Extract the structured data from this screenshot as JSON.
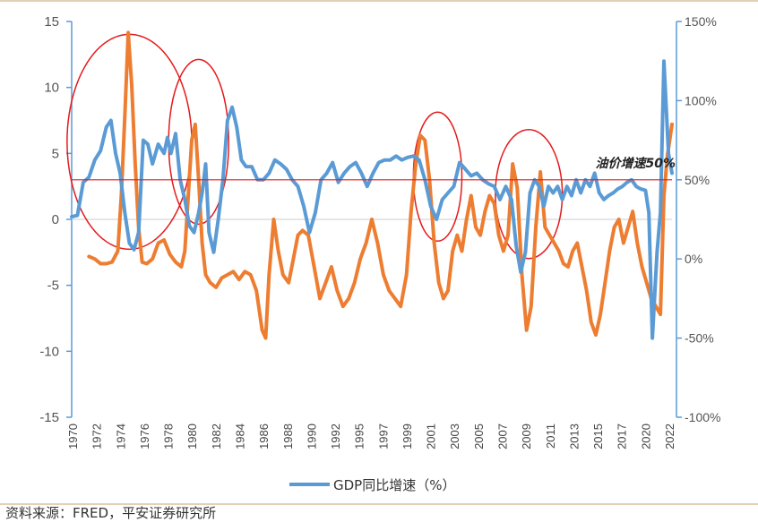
{
  "chart_data": {
    "type": "line",
    "title": "",
    "xlabel": "",
    "ylabel": "",
    "ylim": [
      -15,
      15
    ],
    "y2lim": [
      -100,
      150
    ],
    "y_ticks": [
      "15",
      "10",
      "5",
      "0",
      "-5",
      "-10",
      "-15"
    ],
    "y2_ticks": [
      "150%",
      "100%",
      "50%",
      "0%",
      "-50%",
      "-100%"
    ],
    "x_ticks": [
      "1970",
      "1972",
      "1974",
      "1976",
      "1978",
      "1980",
      "1982",
      "1984",
      "1986",
      "1988",
      "1990",
      "1992",
      "1995",
      "1997",
      "1999",
      "2001",
      "2003",
      "2005",
      "2007",
      "2009",
      "2011",
      "2013",
      "2015",
      "2017",
      "2020",
      "2022"
    ],
    "series": [
      {
        "name": "GDP同比增速（%）",
        "axis": "left",
        "color": "#5B9BD5",
        "points": [
          [
            1970,
            0.2
          ],
          [
            1970.5,
            0.3
          ],
          [
            1971,
            2.8
          ],
          [
            1971.5,
            3.2
          ],
          [
            1972,
            4.5
          ],
          [
            1972.5,
            5.2
          ],
          [
            1973,
            7.0
          ],
          [
            1973.4,
            7.5
          ],
          [
            1973.8,
            5.0
          ],
          [
            1974.2,
            3.5
          ],
          [
            1974.6,
            0.5
          ],
          [
            1975,
            -1.8
          ],
          [
            1975.4,
            -2.3
          ],
          [
            1975.8,
            -1.0
          ],
          [
            1976.2,
            6.0
          ],
          [
            1976.6,
            5.7
          ],
          [
            1977,
            4.2
          ],
          [
            1977.5,
            5.7
          ],
          [
            1978,
            5.0
          ],
          [
            1978.3,
            6.2
          ],
          [
            1978.6,
            5.0
          ],
          [
            1979,
            6.5
          ],
          [
            1979.4,
            3.0
          ],
          [
            1979.8,
            1.5
          ],
          [
            1980.2,
            -0.5
          ],
          [
            1980.6,
            -1.0
          ],
          [
            1981,
            0.5
          ],
          [
            1981.3,
            2.0
          ],
          [
            1981.6,
            4.2
          ],
          [
            1981.9,
            -1.0
          ],
          [
            1982.3,
            -2.5
          ],
          [
            1982.7,
            0.0
          ],
          [
            1983.1,
            3.0
          ],
          [
            1983.5,
            7.5
          ],
          [
            1983.9,
            8.5
          ],
          [
            1984.3,
            7.0
          ],
          [
            1984.7,
            4.5
          ],
          [
            1985.1,
            4.0
          ],
          [
            1985.6,
            4.0
          ],
          [
            1986.1,
            3.0
          ],
          [
            1986.6,
            3.0
          ],
          [
            1987.1,
            3.5
          ],
          [
            1987.6,
            4.5
          ],
          [
            1988.1,
            4.2
          ],
          [
            1988.6,
            3.8
          ],
          [
            1989.1,
            3.0
          ],
          [
            1989.6,
            2.5
          ],
          [
            1990.1,
            1.0
          ],
          [
            1990.6,
            -1.0
          ],
          [
            1991.1,
            0.5
          ],
          [
            1991.6,
            3.0
          ],
          [
            1992.1,
            3.5
          ],
          [
            1992.6,
            4.3
          ],
          [
            1993.1,
            2.8
          ],
          [
            1993.6,
            3.5
          ],
          [
            1994.1,
            4.0
          ],
          [
            1994.6,
            4.3
          ],
          [
            1995.1,
            3.5
          ],
          [
            1995.6,
            2.5
          ],
          [
            1996.1,
            3.5
          ],
          [
            1996.6,
            4.3
          ],
          [
            1997.1,
            4.5
          ],
          [
            1997.6,
            4.5
          ],
          [
            1998.1,
            4.8
          ],
          [
            1998.6,
            4.5
          ],
          [
            1999.1,
            4.7
          ],
          [
            1999.6,
            4.8
          ],
          [
            2000.1,
            4.5
          ],
          [
            2000.6,
            3.0
          ],
          [
            2001.1,
            1.0
          ],
          [
            2001.6,
            0.0
          ],
          [
            2002.1,
            1.5
          ],
          [
            2002.6,
            2.0
          ],
          [
            2003.1,
            2.5
          ],
          [
            2003.6,
            4.3
          ],
          [
            2004.1,
            3.8
          ],
          [
            2004.6,
            3.3
          ],
          [
            2005.1,
            3.5
          ],
          [
            2005.6,
            3.0
          ],
          [
            2006.1,
            2.7
          ],
          [
            2006.6,
            2.5
          ],
          [
            2007.1,
            1.5
          ],
          [
            2007.6,
            2.5
          ],
          [
            2008.1,
            1.5
          ],
          [
            2008.5,
            -2.0
          ],
          [
            2008.9,
            -4.0
          ],
          [
            2009.3,
            -2.5
          ],
          [
            2009.7,
            2.0
          ],
          [
            2010.1,
            3.0
          ],
          [
            2010.5,
            2.5
          ],
          [
            2010.9,
            1.0
          ],
          [
            2011.3,
            2.5
          ],
          [
            2011.7,
            2.0
          ],
          [
            2012.1,
            2.5
          ],
          [
            2012.5,
            1.5
          ],
          [
            2012.9,
            2.5
          ],
          [
            2013.3,
            1.8
          ],
          [
            2013.7,
            3.0
          ],
          [
            2014.1,
            2.0
          ],
          [
            2014.5,
            3.0
          ],
          [
            2014.9,
            2.5
          ],
          [
            2015.3,
            3.5
          ],
          [
            2015.7,
            2.0
          ],
          [
            2016.1,
            1.5
          ],
          [
            2016.5,
            1.8
          ],
          [
            2016.9,
            2.0
          ],
          [
            2017.3,
            2.3
          ],
          [
            2017.7,
            2.5
          ],
          [
            2018.1,
            2.8
          ],
          [
            2018.5,
            3.0
          ],
          [
            2018.9,
            2.5
          ],
          [
            2019.3,
            2.3
          ],
          [
            2019.7,
            2.2
          ],
          [
            2020.0,
            0.5
          ],
          [
            2020.3,
            -9.0
          ],
          [
            2020.7,
            -2.5
          ],
          [
            2021.0,
            0.5
          ],
          [
            2021.3,
            12.0
          ],
          [
            2021.7,
            5.0
          ],
          [
            2022.0,
            3.5
          ]
        ]
      },
      {
        "name": "",
        "axis": "right",
        "color": "#ED7D31",
        "points": [
          [
            1971.5,
            1.5
          ],
          [
            1972,
            0
          ],
          [
            1972.5,
            -3
          ],
          [
            1973,
            -3
          ],
          [
            1973.5,
            -2
          ],
          [
            1974,
            5
          ],
          [
            1974.3,
            40
          ],
          [
            1974.6,
            90
          ],
          [
            1974.9,
            143
          ],
          [
            1975.2,
            110
          ],
          [
            1975.5,
            60
          ],
          [
            1975.8,
            20
          ],
          [
            1976.1,
            -2
          ],
          [
            1976.5,
            -3
          ],
          [
            1977,
            0
          ],
          [
            1977.5,
            10
          ],
          [
            1978,
            12
          ],
          [
            1978.5,
            3
          ],
          [
            1979,
            -2
          ],
          [
            1979.5,
            -5
          ],
          [
            1979.8,
            5
          ],
          [
            1980.1,
            40
          ],
          [
            1980.4,
            75
          ],
          [
            1980.7,
            85
          ],
          [
            1981,
            50
          ],
          [
            1981.3,
            10
          ],
          [
            1981.6,
            -10
          ],
          [
            1982,
            -15
          ],
          [
            1982.5,
            -18
          ],
          [
            1983,
            -12
          ],
          [
            1983.5,
            -10
          ],
          [
            1984,
            -8
          ],
          [
            1984.5,
            -13
          ],
          [
            1985,
            -8
          ],
          [
            1985.5,
            -10
          ],
          [
            1986,
            -20
          ],
          [
            1986.5,
            -45
          ],
          [
            1986.8,
            -50
          ],
          [
            1987.1,
            -10
          ],
          [
            1987.5,
            25
          ],
          [
            1987.9,
            5
          ],
          [
            1988.3,
            -10
          ],
          [
            1988.8,
            -15
          ],
          [
            1989.2,
            0
          ],
          [
            1989.6,
            15
          ],
          [
            1990,
            18
          ],
          [
            1990.5,
            15
          ],
          [
            1991,
            -5
          ],
          [
            1991.5,
            -25
          ],
          [
            1992,
            -15
          ],
          [
            1992.5,
            -5
          ],
          [
            1993,
            -20
          ],
          [
            1993.5,
            -30
          ],
          [
            1994,
            -25
          ],
          [
            1994.5,
            -15
          ],
          [
            1995,
            0
          ],
          [
            1995.5,
            10
          ],
          [
            1996,
            25
          ],
          [
            1996.5,
            10
          ],
          [
            1997,
            -10
          ],
          [
            1997.5,
            -20
          ],
          [
            1998,
            -25
          ],
          [
            1998.5,
            -30
          ],
          [
            1999,
            -10
          ],
          [
            1999.4,
            30
          ],
          [
            1999.8,
            60
          ],
          [
            2000.2,
            78
          ],
          [
            2000.6,
            75
          ],
          [
            2001,
            50
          ],
          [
            2001.4,
            10
          ],
          [
            2001.8,
            -15
          ],
          [
            2002.2,
            -25
          ],
          [
            2002.6,
            -20
          ],
          [
            2003,
            5
          ],
          [
            2003.4,
            15
          ],
          [
            2003.8,
            5
          ],
          [
            2004.2,
            25
          ],
          [
            2004.6,
            40
          ],
          [
            2005,
            20
          ],
          [
            2005.4,
            15
          ],
          [
            2005.8,
            30
          ],
          [
            2006.2,
            40
          ],
          [
            2006.6,
            35
          ],
          [
            2007,
            15
          ],
          [
            2007.4,
            5
          ],
          [
            2007.8,
            15
          ],
          [
            2008.2,
            60
          ],
          [
            2008.6,
            45
          ],
          [
            2009,
            -10
          ],
          [
            2009.4,
            -45
          ],
          [
            2009.8,
            -30
          ],
          [
            2010.2,
            20
          ],
          [
            2010.6,
            55
          ],
          [
            2011,
            20
          ],
          [
            2011.4,
            15
          ],
          [
            2011.8,
            10
          ],
          [
            2012.2,
            5
          ],
          [
            2012.6,
            -3
          ],
          [
            2013,
            -5
          ],
          [
            2013.4,
            5
          ],
          [
            2013.8,
            10
          ],
          [
            2014.2,
            -5
          ],
          [
            2014.6,
            -20
          ],
          [
            2015,
            -40
          ],
          [
            2015.4,
            -48
          ],
          [
            2015.8,
            -35
          ],
          [
            2016.2,
            -15
          ],
          [
            2016.6,
            5
          ],
          [
            2017,
            20
          ],
          [
            2017.4,
            25
          ],
          [
            2017.8,
            10
          ],
          [
            2018.2,
            20
          ],
          [
            2018.6,
            30
          ],
          [
            2019,
            10
          ],
          [
            2019.4,
            -5
          ],
          [
            2019.8,
            -15
          ],
          [
            2020.2,
            -25
          ],
          [
            2020.6,
            -30
          ],
          [
            2021,
            -35
          ],
          [
            2021.3,
            40
          ],
          [
            2021.6,
            65
          ],
          [
            2022,
            85
          ]
        ]
      }
    ],
    "reference_line": {
      "axis": "right",
      "value": 50,
      "color": "#E41A1C",
      "label": "油价增速50%"
    },
    "ellipses": [
      [
        1975,
        74,
        5.4
      ],
      [
        1981,
        74,
        2.6
      ],
      [
        2001.7,
        52,
        2.1
      ],
      [
        2009.6,
        41,
        2.9
      ]
    ],
    "legend": {
      "position": "bottom",
      "label": "GDP同比增速（%）"
    },
    "source_text": "资料来源：FRED，平安证券研究所",
    "grid": false
  }
}
